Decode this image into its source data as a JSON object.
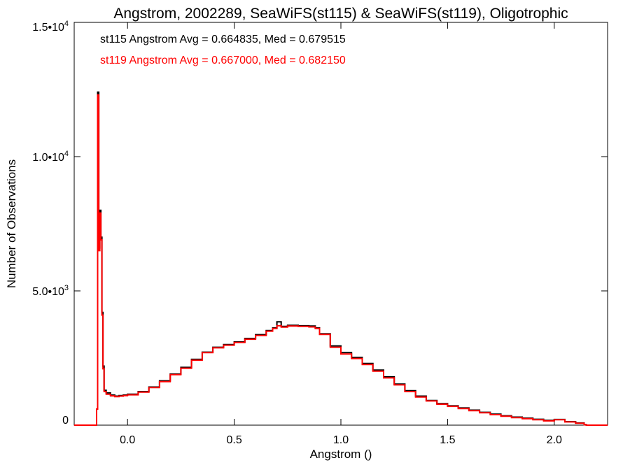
{
  "chart_data": {
    "type": "histogram-step",
    "title": "Angstrom, 2002289, SeaWiFS(st115) & SeaWiFS(st119), Oligotrophic",
    "xlabel": "Angstrom ()",
    "ylabel": "Number of Observations",
    "xlim": [
      -0.25,
      2.25
    ],
    "ylim": [
      0,
      15000
    ],
    "x_ticks": [
      0.0,
      0.5,
      1.0,
      1.5,
      2.0
    ],
    "x_tick_labels": [
      "0.0",
      "0.5",
      "1.0",
      "1.5",
      "2.0"
    ],
    "y_ticks": [
      0,
      5000,
      10000,
      15000
    ],
    "y_tick_labels": [
      {
        "mantissa": "0",
        "exponent": ""
      },
      {
        "mantissa": "5.0•10",
        "exponent": "3"
      },
      {
        "mantissa": "1.0•10",
        "exponent": "4"
      },
      {
        "mantissa": "1.5•10",
        "exponent": "4"
      }
    ],
    "annotations": [
      {
        "text": "st115 Angstrom Avg = 0.664835, Med = 0.679515",
        "color": "#000000"
      },
      {
        "text": "st119 Angstrom Avg = 0.667000, Med = 0.682150",
        "color": "#ff0000"
      }
    ],
    "series": [
      {
        "name": "st115",
        "color": "#000000",
        "points": [
          [
            -0.25,
            0
          ],
          [
            -0.15,
            0
          ],
          [
            -0.145,
            600
          ],
          [
            -0.14,
            12400
          ],
          [
            -0.135,
            6600
          ],
          [
            -0.13,
            8000
          ],
          [
            -0.125,
            7000
          ],
          [
            -0.12,
            4200
          ],
          [
            -0.115,
            2200
          ],
          [
            -0.11,
            1300
          ],
          [
            -0.1,
            1200
          ],
          [
            -0.08,
            1120
          ],
          [
            -0.06,
            1080
          ],
          [
            -0.04,
            1100
          ],
          [
            -0.02,
            1120
          ],
          [
            0.0,
            1150
          ],
          [
            0.05,
            1250
          ],
          [
            0.1,
            1420
          ],
          [
            0.15,
            1650
          ],
          [
            0.2,
            1900
          ],
          [
            0.25,
            2150
          ],
          [
            0.3,
            2450
          ],
          [
            0.35,
            2720
          ],
          [
            0.4,
            2900
          ],
          [
            0.45,
            3000
          ],
          [
            0.5,
            3100
          ],
          [
            0.55,
            3230
          ],
          [
            0.6,
            3370
          ],
          [
            0.65,
            3520
          ],
          [
            0.68,
            3620
          ],
          [
            0.7,
            3850
          ],
          [
            0.72,
            3680
          ],
          [
            0.75,
            3720
          ],
          [
            0.8,
            3700
          ],
          [
            0.85,
            3690
          ],
          [
            0.88,
            3620
          ],
          [
            0.9,
            3400
          ],
          [
            0.95,
            2950
          ],
          [
            1.0,
            2700
          ],
          [
            1.05,
            2520
          ],
          [
            1.1,
            2300
          ],
          [
            1.15,
            2050
          ],
          [
            1.2,
            1800
          ],
          [
            1.25,
            1530
          ],
          [
            1.3,
            1280
          ],
          [
            1.35,
            1080
          ],
          [
            1.4,
            920
          ],
          [
            1.45,
            800
          ],
          [
            1.5,
            720
          ],
          [
            1.55,
            640
          ],
          [
            1.6,
            560
          ],
          [
            1.65,
            480
          ],
          [
            1.7,
            410
          ],
          [
            1.75,
            350
          ],
          [
            1.8,
            300
          ],
          [
            1.85,
            260
          ],
          [
            1.9,
            220
          ],
          [
            1.95,
            180
          ],
          [
            2.0,
            210
          ],
          [
            2.05,
            130
          ],
          [
            2.1,
            80
          ],
          [
            2.14,
            20
          ],
          [
            2.15,
            0
          ],
          [
            2.25,
            0
          ]
        ]
      },
      {
        "name": "st119",
        "color": "#ff0000",
        "points": [
          [
            -0.25,
            0
          ],
          [
            -0.15,
            0
          ],
          [
            -0.145,
            600
          ],
          [
            -0.14,
            12300
          ],
          [
            -0.135,
            6500
          ],
          [
            -0.13,
            7900
          ],
          [
            -0.125,
            6900
          ],
          [
            -0.12,
            4100
          ],
          [
            -0.115,
            2100
          ],
          [
            -0.11,
            1250
          ],
          [
            -0.1,
            1150
          ],
          [
            -0.08,
            1090
          ],
          [
            -0.06,
            1060
          ],
          [
            -0.04,
            1080
          ],
          [
            -0.02,
            1100
          ],
          [
            0.0,
            1130
          ],
          [
            0.05,
            1230
          ],
          [
            0.1,
            1400
          ],
          [
            0.15,
            1620
          ],
          [
            0.2,
            1880
          ],
          [
            0.25,
            2120
          ],
          [
            0.3,
            2420
          ],
          [
            0.35,
            2700
          ],
          [
            0.4,
            2880
          ],
          [
            0.45,
            2980
          ],
          [
            0.5,
            3080
          ],
          [
            0.55,
            3200
          ],
          [
            0.6,
            3340
          ],
          [
            0.65,
            3500
          ],
          [
            0.68,
            3600
          ],
          [
            0.7,
            3700
          ],
          [
            0.72,
            3650
          ],
          [
            0.75,
            3690
          ],
          [
            0.8,
            3680
          ],
          [
            0.85,
            3660
          ],
          [
            0.88,
            3600
          ],
          [
            0.9,
            3380
          ],
          [
            0.95,
            2900
          ],
          [
            1.0,
            2650
          ],
          [
            1.05,
            2480
          ],
          [
            1.1,
            2260
          ],
          [
            1.15,
            2010
          ],
          [
            1.2,
            1760
          ],
          [
            1.25,
            1500
          ],
          [
            1.3,
            1250
          ],
          [
            1.35,
            1050
          ],
          [
            1.4,
            900
          ],
          [
            1.45,
            780
          ],
          [
            1.5,
            700
          ],
          [
            1.55,
            620
          ],
          [
            1.6,
            540
          ],
          [
            1.65,
            460
          ],
          [
            1.7,
            390
          ],
          [
            1.75,
            330
          ],
          [
            1.8,
            280
          ],
          [
            1.85,
            240
          ],
          [
            1.9,
            200
          ],
          [
            1.95,
            160
          ],
          [
            2.0,
            200
          ],
          [
            2.05,
            120
          ],
          [
            2.1,
            70
          ],
          [
            2.14,
            15
          ],
          [
            2.15,
            0
          ],
          [
            2.25,
            0
          ]
        ]
      }
    ]
  }
}
